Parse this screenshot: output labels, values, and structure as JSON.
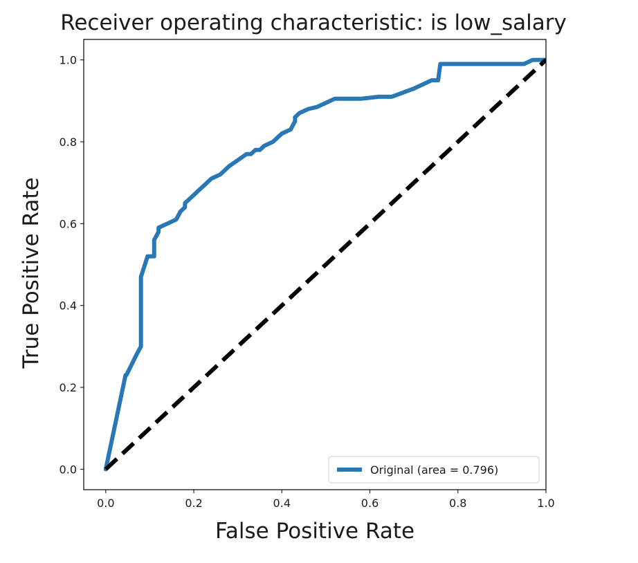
{
  "chart_data": {
    "type": "line",
    "title": "Receiver operating characteristic: is low_salary",
    "xlabel": "False Positive Rate",
    "ylabel": "True Positive Rate",
    "xlim": [
      -0.05,
      1.0
    ],
    "ylim": [
      -0.05,
      1.05
    ],
    "xticks": [
      0.0,
      0.2,
      0.4,
      0.6,
      0.8,
      1.0
    ],
    "xtick_labels": [
      "0.0",
      "0.2",
      "0.4",
      "0.6",
      "0.8",
      "1.0"
    ],
    "yticks": [
      0.0,
      0.2,
      0.4,
      0.6,
      0.8,
      1.0
    ],
    "ytick_labels": [
      "0.0",
      "0.2",
      "0.4",
      "0.6",
      "0.8",
      "1.0"
    ],
    "grid": false,
    "legend_position": "lower-right",
    "series": [
      {
        "name": "Original (area = 0.796)",
        "color": "#2878b5",
        "style": "solid",
        "x": [
          0.0,
          0.045,
          0.047,
          0.07,
          0.08,
          0.08,
          0.095,
          0.11,
          0.11,
          0.12,
          0.12,
          0.13,
          0.14,
          0.16,
          0.17,
          0.18,
          0.18,
          0.19,
          0.2,
          0.21,
          0.22,
          0.23,
          0.24,
          0.26,
          0.28,
          0.3,
          0.32,
          0.33,
          0.34,
          0.35,
          0.36,
          0.38,
          0.4,
          0.42,
          0.43,
          0.43,
          0.44,
          0.44,
          0.46,
          0.48,
          0.5,
          0.52,
          0.54,
          0.58,
          0.62,
          0.65,
          0.7,
          0.72,
          0.74,
          0.755,
          0.76,
          0.8,
          0.85,
          0.9,
          0.95,
          0.96,
          0.97,
          1.0
        ],
        "y": [
          0.0,
          0.23,
          0.23,
          0.28,
          0.3,
          0.47,
          0.52,
          0.52,
          0.56,
          0.58,
          0.59,
          0.595,
          0.6,
          0.61,
          0.63,
          0.64,
          0.65,
          0.66,
          0.67,
          0.68,
          0.69,
          0.7,
          0.71,
          0.72,
          0.74,
          0.755,
          0.77,
          0.77,
          0.78,
          0.78,
          0.79,
          0.8,
          0.82,
          0.83,
          0.85,
          0.86,
          0.87,
          0.87,
          0.88,
          0.885,
          0.895,
          0.905,
          0.905,
          0.905,
          0.91,
          0.91,
          0.93,
          0.94,
          0.95,
          0.95,
          0.99,
          0.99,
          0.99,
          0.99,
          0.99,
          0.995,
          1.0,
          1.0
        ]
      },
      {
        "color": "#000000",
        "style": "dashed",
        "x": [
          0.0,
          1.0
        ],
        "y": [
          0.0,
          1.0
        ]
      }
    ]
  }
}
